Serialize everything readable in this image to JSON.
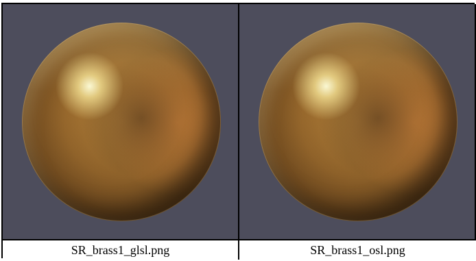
{
  "panels": [
    {
      "caption": "SR_brass1_glsl.png"
    },
    {
      "caption": "SR_brass1_osl.png"
    }
  ]
}
